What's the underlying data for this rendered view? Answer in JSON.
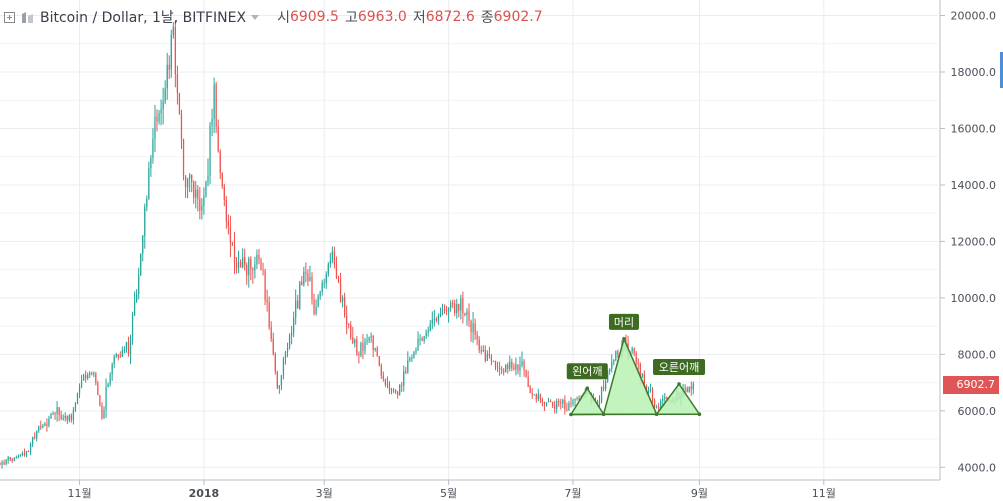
{
  "header": {
    "symbol": "Bitcoin / Dollar, 1날, BITFINEX",
    "open_label": "시",
    "open_value": "6909.5",
    "high_label": "고",
    "high_value": "6963.0",
    "low_label": "저",
    "low_value": "6872.6",
    "close_label": "종",
    "close_value": "6902.7",
    "icons": [
      "expand-square-icon",
      "exchange-logo-icon",
      "dropdown-caret-icon"
    ]
  },
  "colors": {
    "up": "#26a69a",
    "down": "#ef5350",
    "grid": "#e9edf1",
    "pattern_fill": "#b9f2b5",
    "pattern_stroke": "#3d7a2c",
    "label_bg": "#3d6b22",
    "price_tag_bg": "#e05656"
  },
  "chart_data": {
    "type": "candlestick",
    "title": "Bitcoin / Dollar, 1날, BITFINEX",
    "x_ticks": [
      {
        "date": "2017-11-01",
        "label": "11월"
      },
      {
        "date": "2018-01-01",
        "label": "2018"
      },
      {
        "date": "2018-03-01",
        "label": "3월"
      },
      {
        "date": "2018-05-01",
        "label": "5월"
      },
      {
        "date": "2018-07-01",
        "label": "7월"
      },
      {
        "date": "2018-09-01",
        "label": "9월"
      },
      {
        "date": "2018-11-01",
        "label": "11월"
      }
    ],
    "x_range": [
      "2017-09-23",
      "2018-12-27"
    ],
    "y_range": [
      3550,
      20550
    ],
    "y_ticks": [
      "4000.0",
      "6000.0",
      "8000.0",
      "10000.0",
      "12000.0",
      "14000.0",
      "16000.0",
      "18000.0",
      "20000.0"
    ],
    "price_path": [
      [
        "2017-09-23",
        4150
      ],
      [
        "2017-09-30",
        4300
      ],
      [
        "2017-10-07",
        4600
      ],
      [
        "2017-10-12",
        5400
      ],
      [
        "2017-10-21",
        5950
      ],
      [
        "2017-10-28",
        5800
      ],
      [
        "2017-11-03",
        7200
      ],
      [
        "2017-11-08",
        7300
      ],
      [
        "2017-11-12",
        5800
      ],
      [
        "2017-11-17",
        7800
      ],
      [
        "2017-11-25",
        8300
      ],
      [
        "2017-11-29",
        9900
      ],
      [
        "2017-12-07",
        15800
      ],
      [
        "2017-12-12",
        16800
      ],
      [
        "2017-12-17",
        19400
      ],
      [
        "2017-12-22",
        14500
      ],
      [
        "2017-12-28",
        13500
      ],
      [
        "2018-01-01",
        13400
      ],
      [
        "2018-01-06",
        17000
      ],
      [
        "2018-01-11",
        13200
      ],
      [
        "2018-01-17",
        11200
      ],
      [
        "2018-01-22",
        11000
      ],
      [
        "2018-01-28",
        11600
      ],
      [
        "2018-02-03",
        8500
      ],
      [
        "2018-02-06",
        6700
      ],
      [
        "2018-02-10",
        8000
      ],
      [
        "2018-02-20",
        11200
      ],
      [
        "2018-02-24",
        9500
      ],
      [
        "2018-03-05",
        11500
      ],
      [
        "2018-03-12",
        9000
      ],
      [
        "2018-03-18",
        8200
      ],
      [
        "2018-03-24",
        8700
      ],
      [
        "2018-03-31",
        6900
      ],
      [
        "2018-04-06",
        6600
      ],
      [
        "2018-04-12",
        7900
      ],
      [
        "2018-04-20",
        8900
      ],
      [
        "2018-04-26",
        9300
      ],
      [
        "2018-05-05",
        9800
      ],
      [
        "2018-05-10",
        9300
      ],
      [
        "2018-05-17",
        8100
      ],
      [
        "2018-05-24",
        7500
      ],
      [
        "2018-05-30",
        7500
      ],
      [
        "2018-06-06",
        7650
      ],
      [
        "2018-06-10",
        6800
      ],
      [
        "2018-06-16",
        6450
      ],
      [
        "2018-06-24",
        6100
      ],
      [
        "2018-06-30",
        6300
      ],
      [
        "2018-07-07",
        6700
      ],
      [
        "2018-07-13",
        6250
      ],
      [
        "2018-07-18",
        7400
      ],
      [
        "2018-07-24",
        8250
      ],
      [
        "2018-07-30",
        8100
      ],
      [
        "2018-08-05",
        7000
      ],
      [
        "2018-08-11",
        6200
      ],
      [
        "2018-08-16",
        6350
      ],
      [
        "2018-08-22",
        6500
      ],
      [
        "2018-08-29",
        6900
      ]
    ],
    "last_price": "6902.7",
    "pattern": {
      "name": "head-and-shoulders",
      "fill": "#b9f2b5",
      "points": [
        [
          "2018-06-30",
          5870
        ],
        [
          "2018-07-08",
          6800
        ],
        [
          "2018-07-16",
          5880
        ],
        [
          "2018-07-26",
          8550
        ],
        [
          "2018-08-11",
          5880
        ],
        [
          "2018-08-22",
          6950
        ],
        [
          "2018-09-01",
          5880
        ]
      ],
      "labels": [
        {
          "text": "왼어깨",
          "date": "2018-07-08",
          "value": 6800
        },
        {
          "text": "머리",
          "date": "2018-07-26",
          "value": 8550
        },
        {
          "text": "오른어깨",
          "date": "2018-08-22",
          "value": 6950
        }
      ]
    }
  }
}
